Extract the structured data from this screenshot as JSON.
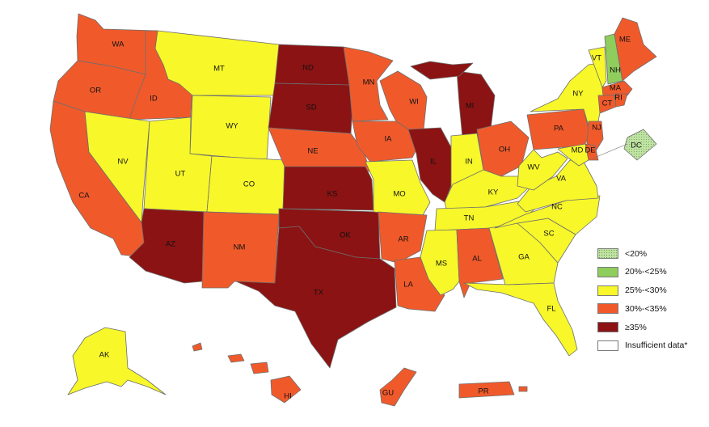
{
  "colors": {
    "lt20": "#bfe3a3",
    "r20_25": "#8fcd5d",
    "r25_30": "#f7f72a",
    "r30_35": "#f05a2b",
    "ge35": "#8b1313",
    "insufficient": "#ffffff",
    "border": "#6e6e6e"
  },
  "legend": [
    {
      "label": "<20%",
      "color": "#bfe3a3",
      "pattern": "dotted"
    },
    {
      "label": "20%-<25%",
      "color": "#8fcd5d"
    },
    {
      "label": "25%-<30%",
      "color": "#f7f72a"
    },
    {
      "label": "30%-<35%",
      "color": "#f05a2b"
    },
    {
      "label": "≥35%",
      "color": "#8b1313"
    },
    {
      "label": "Insufficient data*",
      "color": "#ffffff"
    }
  ],
  "states": {
    "WA": {
      "label": "WA",
      "category": "30%-<35%"
    },
    "OR": {
      "label": "OR",
      "category": "30%-<35%"
    },
    "CA": {
      "label": "CA",
      "category": "30%-<35%"
    },
    "ID": {
      "label": "ID",
      "category": "30%-<35%"
    },
    "NV": {
      "label": "NV",
      "category": "25%-<30%"
    },
    "MT": {
      "label": "MT",
      "category": "25%-<30%"
    },
    "WY": {
      "label": "WY",
      "category": "25%-<30%"
    },
    "UT": {
      "label": "UT",
      "category": "25%-<30%"
    },
    "CO": {
      "label": "CO",
      "category": "25%-<30%"
    },
    "AZ": {
      "label": "AZ",
      "category": "≥35%"
    },
    "NM": {
      "label": "NM",
      "category": "30%-<35%"
    },
    "ND": {
      "label": "ND",
      "category": "≥35%"
    },
    "SD": {
      "label": "SD",
      "category": "≥35%"
    },
    "NE": {
      "label": "NE",
      "category": "30%-<35%"
    },
    "KS": {
      "label": "KS",
      "category": "≥35%"
    },
    "OK": {
      "label": "OK",
      "category": "≥35%"
    },
    "TX": {
      "label": "TX",
      "category": "≥35%"
    },
    "MN": {
      "label": "MN",
      "category": "30%-<35%"
    },
    "IA": {
      "label": "IA",
      "category": "30%-<35%"
    },
    "MO": {
      "label": "MO",
      "category": "25%-<30%"
    },
    "AR": {
      "label": "AR",
      "category": "30%-<35%"
    },
    "LA": {
      "label": "LA",
      "category": "30%-<35%"
    },
    "WI": {
      "label": "WI",
      "category": "30%-<35%"
    },
    "IL": {
      "label": "IL",
      "category": "≥35%"
    },
    "MI": {
      "label": "MI",
      "category": "≥35%"
    },
    "IN": {
      "label": "IN",
      "category": "25%-<30%"
    },
    "OH": {
      "label": "OH",
      "category": "30%-<35%"
    },
    "KY": {
      "label": "KY",
      "category": "25%-<30%"
    },
    "TN": {
      "label": "TN",
      "category": "25%-<30%"
    },
    "MS": {
      "label": "MS",
      "category": "25%-<30%"
    },
    "AL": {
      "label": "AL",
      "category": "30%-<35%"
    },
    "GA": {
      "label": "GA",
      "category": "25%-<30%"
    },
    "FL": {
      "label": "FL",
      "category": "25%-<30%"
    },
    "SC": {
      "label": "SC",
      "category": "25%-<30%"
    },
    "NC": {
      "label": "NC",
      "category": "25%-<30%"
    },
    "VA": {
      "label": "VA",
      "category": "25%-<30%"
    },
    "WV": {
      "label": "WV",
      "category": "25%-<30%"
    },
    "PA": {
      "label": "PA",
      "category": "30%-<35%"
    },
    "NY": {
      "label": "NY",
      "category": "25%-<30%"
    },
    "VT": {
      "label": "VT",
      "category": "25%-<30%"
    },
    "NH": {
      "label": "NH",
      "category": "20%-<25%"
    },
    "ME": {
      "label": "ME",
      "category": "30%-<35%"
    },
    "MA": {
      "label": "MA",
      "category": "30%-<35%"
    },
    "RI": {
      "label": "RI",
      "category": "30%-<35%"
    },
    "CT": {
      "label": "CT",
      "category": "30%-<35%"
    },
    "NJ": {
      "label": "NJ",
      "category": "30%-<35%"
    },
    "DE": {
      "label": "DE",
      "category": "30%-<35%"
    },
    "MD": {
      "label": "MD",
      "category": "25%-<30%"
    },
    "DC": {
      "label": "DC",
      "category": "<20%"
    },
    "AK": {
      "label": "AK",
      "category": "25%-<30%"
    },
    "HI": {
      "label": "HI",
      "category": "30%-<35%"
    },
    "GU": {
      "label": "GU",
      "category": "30%-<35%"
    },
    "PR": {
      "label": "PR",
      "category": "30%-<35%"
    }
  }
}
